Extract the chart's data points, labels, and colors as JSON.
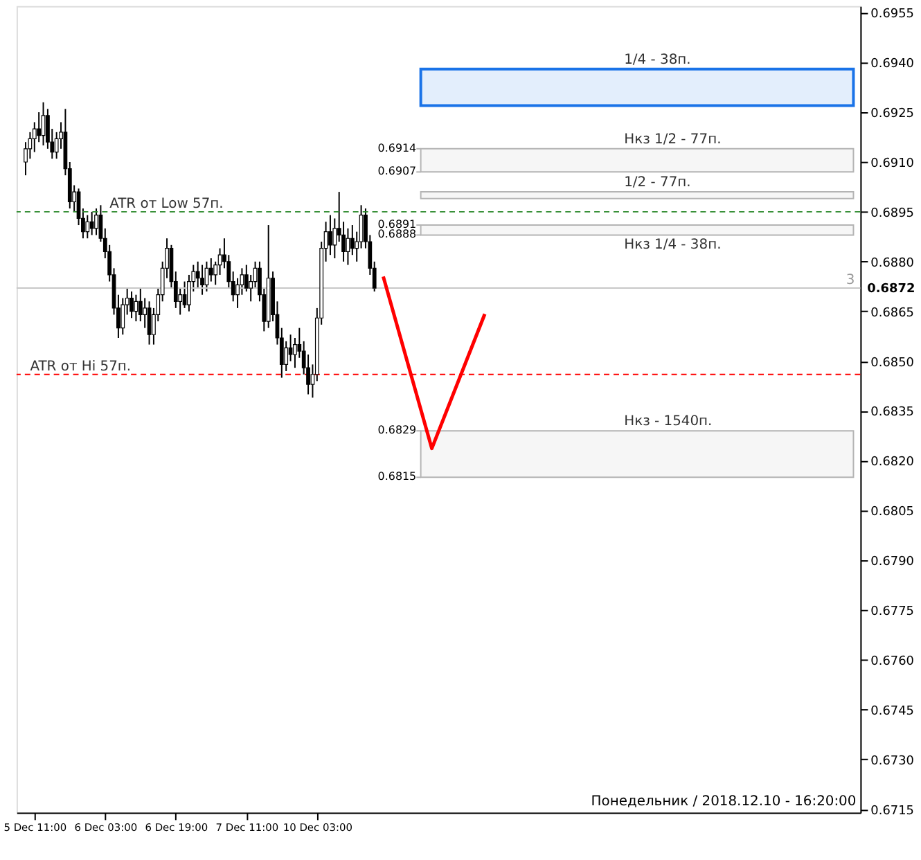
{
  "chart_data": {
    "type": "candlestick",
    "categories": [
      null,
      null,
      "5 Dec 11:00",
      null,
      null,
      null,
      null,
      null,
      null,
      null,
      null,
      null,
      null,
      null,
      null,
      null,
      null,
      null,
      "6 Dec 03:00",
      null,
      null,
      null,
      null,
      null,
      null,
      null,
      null,
      null,
      null,
      null,
      null,
      null,
      null,
      null,
      "6 Dec 19:00",
      null,
      null,
      null,
      null,
      null,
      null,
      null,
      null,
      null,
      null,
      null,
      null,
      null,
      null,
      null,
      "7 Dec 11:00",
      null,
      null,
      null,
      null,
      null,
      null,
      null,
      null,
      null,
      null,
      null,
      null,
      null,
      null,
      null,
      "10 Dec 03:00",
      null,
      null,
      null,
      null,
      null,
      null,
      null,
      null,
      null,
      null,
      null,
      null,
      null,
      null,
      null,
      null,
      null,
      null,
      null,
      null,
      null,
      null,
      null,
      null,
      null,
      null,
      null,
      null,
      null,
      null,
      null,
      null,
      null,
      null,
      null,
      null,
      null,
      null,
      null,
      null,
      null,
      null,
      null,
      null,
      null,
      null,
      null,
      null,
      null,
      null,
      null,
      null,
      null,
      null,
      null,
      null,
      null,
      null,
      null,
      null,
      null,
      null,
      null,
      null,
      null,
      null,
      null,
      null,
      null,
      null,
      null,
      null,
      null,
      null,
      null,
      null,
      null,
      null,
      null,
      null,
      null,
      null,
      null,
      null,
      null,
      null,
      null,
      null,
      null,
      null,
      null,
      null,
      null,
      null,
      null,
      null,
      null,
      null,
      null,
      null,
      null,
      null,
      null,
      null,
      null,
      null,
      null,
      null,
      null,
      null,
      null,
      null,
      null,
      null,
      null,
      null,
      null,
      null,
      null,
      null,
      null
    ],
    "ohlc": [
      [
        0.691,
        0.6916,
        0.6906,
        0.6914
      ],
      [
        0.6914,
        0.6919,
        0.6911,
        0.6917
      ],
      [
        0.6917,
        0.6922,
        0.6913,
        0.692
      ],
      [
        0.692,
        0.6925,
        0.6916,
        0.6918
      ],
      [
        0.6918,
        0.6928,
        0.6915,
        0.6924
      ],
      [
        0.6924,
        0.6926,
        0.6914,
        0.6916
      ],
      [
        0.6916,
        0.692,
        0.6911,
        0.6913
      ],
      [
        0.6913,
        0.6919,
        0.6911,
        0.6917
      ],
      [
        0.6917,
        0.6922,
        0.6914,
        0.6919
      ],
      [
        0.6919,
        0.6926,
        0.6906,
        0.6908
      ],
      [
        0.6908,
        0.691,
        0.6896,
        0.6898
      ],
      [
        0.6898,
        0.6903,
        0.6895,
        0.6901
      ],
      [
        0.6901,
        0.6902,
        0.6891,
        0.6893
      ],
      [
        0.6893,
        0.6896,
        0.6887,
        0.6889
      ],
      [
        0.6889,
        0.6894,
        0.6887,
        0.6892
      ],
      [
        0.6892,
        0.6895,
        0.6888,
        0.689
      ],
      [
        0.689,
        0.6896,
        0.6888,
        0.6894
      ],
      [
        0.6894,
        0.6897,
        0.6886,
        0.6887
      ],
      [
        0.6887,
        0.689,
        0.6881,
        0.6883
      ],
      [
        0.6883,
        0.6885,
        0.6874,
        0.6876
      ],
      [
        0.6876,
        0.6878,
        0.6864,
        0.6866
      ],
      [
        0.6866,
        0.687,
        0.6857,
        0.686
      ],
      [
        0.686,
        0.6869,
        0.6858,
        0.6867
      ],
      [
        0.6867,
        0.6872,
        0.6864,
        0.6869
      ],
      [
        0.6869,
        0.6871,
        0.6863,
        0.6865
      ],
      [
        0.6865,
        0.687,
        0.6862,
        0.6868
      ],
      [
        0.6868,
        0.6872,
        0.6862,
        0.6864
      ],
      [
        0.6864,
        0.6869,
        0.686,
        0.6866
      ],
      [
        0.6866,
        0.6868,
        0.6855,
        0.6858
      ],
      [
        0.6858,
        0.6866,
        0.6855,
        0.6864
      ],
      [
        0.6864,
        0.6872,
        0.6862,
        0.687
      ],
      [
        0.687,
        0.688,
        0.6868,
        0.6878
      ],
      [
        0.6878,
        0.6887,
        0.6875,
        0.6884
      ],
      [
        0.6884,
        0.6885,
        0.6872,
        0.6874
      ],
      [
        0.6874,
        0.6877,
        0.6866,
        0.6868
      ],
      [
        0.6868,
        0.6872,
        0.6864,
        0.687
      ],
      [
        0.687,
        0.6874,
        0.6866,
        0.6867
      ],
      [
        0.6867,
        0.6876,
        0.6865,
        0.6874
      ],
      [
        0.6874,
        0.6879,
        0.6871,
        0.6877
      ],
      [
        0.6877,
        0.688,
        0.6872,
        0.6875
      ],
      [
        0.6875,
        0.6879,
        0.687,
        0.6873
      ],
      [
        0.6873,
        0.688,
        0.6871,
        0.6878
      ],
      [
        0.6878,
        0.6881,
        0.6874,
        0.6876
      ],
      [
        0.6876,
        0.688,
        0.6873,
        0.6879
      ],
      [
        0.6879,
        0.6884,
        0.6876,
        0.6882
      ],
      [
        0.6882,
        0.6887,
        0.6878,
        0.688
      ],
      [
        0.688,
        0.6882,
        0.6872,
        0.6874
      ],
      [
        0.6874,
        0.6877,
        0.6868,
        0.687
      ],
      [
        0.687,
        0.6875,
        0.6866,
        0.6873
      ],
      [
        0.6873,
        0.6878,
        0.687,
        0.6876
      ],
      [
        0.6876,
        0.6879,
        0.6871,
        0.6872
      ],
      [
        0.6872,
        0.6876,
        0.6868,
        0.6874
      ],
      [
        0.6874,
        0.688,
        0.6872,
        0.6878
      ],
      [
        0.6878,
        0.688,
        0.6868,
        0.687
      ],
      [
        0.687,
        0.6872,
        0.6859,
        0.6862
      ],
      [
        0.6862,
        0.6891,
        0.686,
        0.6875
      ],
      [
        0.6875,
        0.6877,
        0.6862,
        0.6864
      ],
      [
        0.6864,
        0.6868,
        0.6855,
        0.6857
      ],
      [
        0.6857,
        0.686,
        0.6845,
        0.6849
      ],
      [
        0.6849,
        0.6856,
        0.6847,
        0.6854
      ],
      [
        0.6854,
        0.6858,
        0.685,
        0.6852
      ],
      [
        0.6852,
        0.6857,
        0.6848,
        0.6855
      ],
      [
        0.6855,
        0.686,
        0.6851,
        0.6853
      ],
      [
        0.6853,
        0.6856,
        0.6846,
        0.6848
      ],
      [
        0.6848,
        0.6852,
        0.684,
        0.6843
      ],
      [
        0.6843,
        0.6849,
        0.6839,
        0.6846
      ],
      [
        0.6846,
        0.6866,
        0.6844,
        0.6863
      ],
      [
        0.6863,
        0.6886,
        0.6861,
        0.6884
      ],
      [
        0.6884,
        0.6892,
        0.688,
        0.6889
      ],
      [
        0.6889,
        0.6894,
        0.6882,
        0.6885
      ],
      [
        0.6885,
        0.6893,
        0.6881,
        0.689
      ],
      [
        0.689,
        0.6901,
        0.6886,
        0.6888
      ],
      [
        0.6888,
        0.6892,
        0.688,
        0.6883
      ],
      [
        0.6883,
        0.689,
        0.6879,
        0.6887
      ],
      [
        0.6887,
        0.6891,
        0.6882,
        0.6884
      ],
      [
        0.6884,
        0.6889,
        0.688,
        0.6886
      ],
      [
        0.6886,
        0.6897,
        0.6884,
        0.6894
      ],
      [
        0.6894,
        0.6896,
        0.6884,
        0.6886
      ],
      [
        0.6886,
        0.6888,
        0.6876,
        0.6878
      ],
      [
        0.6878,
        0.688,
        0.6871,
        0.6872
      ],
      null,
      null,
      null,
      null,
      null,
      null,
      null,
      null,
      null,
      null,
      null,
      null,
      null,
      null,
      null,
      null,
      null,
      null,
      null,
      null,
      null,
      null,
      null,
      null,
      null,
      null,
      null,
      null,
      null,
      null,
      null,
      null,
      null,
      null,
      null,
      null,
      null,
      null,
      null,
      null,
      null,
      null,
      null,
      null,
      null,
      null,
      null,
      null,
      null,
      null,
      null,
      null,
      null,
      null,
      null,
      null,
      null,
      null,
      null,
      null,
      null,
      null,
      null,
      null,
      null,
      null,
      null,
      null,
      null,
      null,
      null,
      null,
      null,
      null,
      null,
      null,
      null,
      null,
      null,
      null,
      null,
      null,
      null,
      null,
      null,
      null,
      null,
      null,
      null,
      null,
      null,
      null,
      null,
      null,
      null,
      null,
      null,
      null,
      null,
      null,
      null,
      null,
      null,
      null,
      null,
      null,
      null,
      null
    ],
    "series": [
      {
        "type": "line",
        "color": "#ff0000",
        "values": [
          null,
          null,
          null,
          null,
          null,
          null,
          null,
          null,
          null,
          null,
          null,
          null,
          null,
          null,
          null,
          null,
          null,
          null,
          null,
          null,
          null,
          null,
          null,
          null,
          null,
          null,
          null,
          null,
          null,
          null,
          null,
          null,
          null,
          null,
          null,
          null,
          null,
          null,
          null,
          null,
          null,
          null,
          null,
          null,
          null,
          null,
          null,
          null,
          null,
          null,
          null,
          null,
          null,
          null,
          null,
          null,
          null,
          null,
          null,
          null,
          null,
          null,
          null,
          null,
          null,
          null,
          null,
          null,
          null,
          null,
          null,
          null,
          null,
          null,
          null,
          null,
          null,
          null,
          null,
          null,
          null,
          0.68755,
          null,
          null,
          null,
          null,
          null,
          null,
          null,
          null,
          null,
          null,
          0.68237,
          null,
          null,
          null,
          null,
          null,
          null,
          null,
          null,
          null,
          null,
          null,
          0.68642,
          null,
          null,
          null,
          null,
          null,
          null,
          null,
          null,
          null,
          null,
          null,
          null,
          null,
          null,
          null,
          null,
          null,
          null,
          null,
          null,
          null,
          null,
          null,
          null,
          null,
          null,
          null,
          null,
          null,
          null,
          null,
          null,
          null,
          null,
          null,
          null,
          null,
          null,
          null,
          null,
          null,
          null,
          null,
          null,
          null,
          null,
          null,
          null,
          null,
          null,
          null,
          null,
          null,
          null,
          null,
          null,
          null,
          null,
          null,
          null,
          null,
          null,
          null,
          null,
          null,
          null,
          null,
          null,
          null,
          null,
          null,
          null,
          null,
          null,
          null,
          null,
          null,
          null,
          null,
          null,
          null,
          null,
          null
        ]
      }
    ],
    "ylim": [
      0.6714,
      0.6957
    ],
    "yticks": [
      0.6715,
      {
        "value": 0.673,
        "label": "0.6730"
      },
      0.6745,
      {
        "value": 0.676,
        "label": "0.6760"
      },
      0.6775,
      {
        "value": 0.679,
        "label": "0.6790"
      },
      0.6805,
      {
        "value": 0.682,
        "label": "0.6820"
      },
      0.6835,
      {
        "value": 0.685,
        "label": "0.6850"
      },
      0.6865,
      {
        "value": 0.688,
        "label": "0.6880"
      },
      0.6895,
      {
        "value": 0.691,
        "label": "0.6910"
      },
      0.6925,
      {
        "value": 0.694,
        "label": "0.6940"
      },
      0.6955
    ],
    "ref_lines": [
      {
        "axis": "y",
        "value": 0.6895,
        "label": "ATR от Low 57п.",
        "color": "#2e8b2e",
        "line_style": "dashed"
      },
      {
        "axis": "y",
        "value": 0.6846,
        "label": "ATR от Hi 57п.",
        "color": "#ff0000",
        "line_style": "dashed"
      },
      {
        "axis": "y",
        "value": 0.6872,
        "label": "0.6872",
        "color": "#c8c8c8",
        "line_style": "solid"
      },
      {
        "axis": "y",
        "value": 0.6914,
        "label": "0.6914",
        "color": "#b4b4b4",
        "line_style": "solid"
      },
      {
        "axis": "y",
        "value": 0.6907,
        "label": "0.6907",
        "color": "#b4b4b4",
        "line_style": "solid"
      },
      {
        "axis": "y",
        "value": 0.6891,
        "label": "0.6891",
        "color": "#b4b4b4",
        "line_style": "solid"
      },
      {
        "axis": "y",
        "value": 0.6888,
        "label": "0.6888",
        "color": "#b4b4b4",
        "line_style": "solid"
      },
      {
        "axis": "y",
        "value": 0.6829,
        "label": "0.6829",
        "color": "#b4b4b4",
        "line_style": "solid"
      },
      {
        "axis": "y",
        "value": 0.6815,
        "label": "0.6815",
        "color": "#b4b4b4",
        "line_style": "solid"
      }
    ],
    "bands": [
      {
        "axis": "y",
        "from": 0.6927,
        "to": 0.6938,
        "label": "1/4 - 38п.",
        "color": "#1a73e8"
      },
      {
        "axis": "y",
        "from": 0.6899,
        "to": 0.6901,
        "label": "1/2 - 77п.",
        "color": "#b4b4b4"
      },
      {
        "axis": "y",
        "from": 0.6888,
        "to": 0.6891,
        "label": "Нкз 1/4 - 38п.",
        "color": "#b4b4b4"
      },
      {
        "axis": "y",
        "from": 0.6907,
        "to": 0.6914,
        "label": "Нкз 1/2 - 77п.",
        "color": "#b4b4b4"
      },
      {
        "axis": "y",
        "from": 0.6815,
        "to": 0.6829,
        "label": "Нкз - 1540п.",
        "color": "#b4b4b4"
      }
    ],
    "annotations": [
      {
        "text": "3",
        "y": 0.6872
      },
      "Понедельник / 2018.12.10 - 16:20:00"
    ],
    "grid": false
  }
}
